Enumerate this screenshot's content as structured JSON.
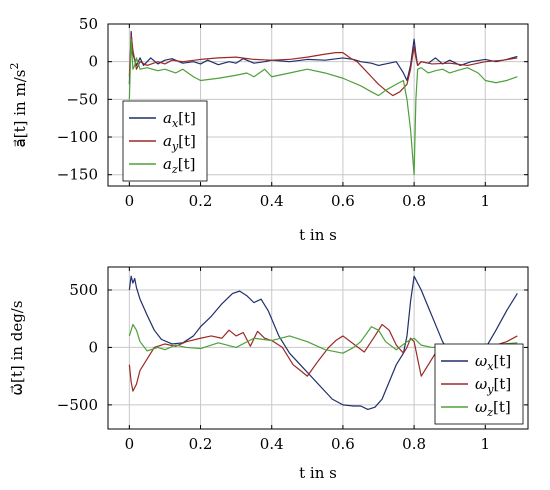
{
  "chart_data": [
    {
      "type": "line",
      "id": "acc",
      "ylabel_main": "a⃗[t] in m/s",
      "ylabel_sup": "2",
      "xlabel": "t in s",
      "xlim": [
        -0.06,
        1.12
      ],
      "ylim": [
        -165,
        50
      ],
      "xticks": [
        0,
        0.2,
        0.4,
        0.6,
        0.8,
        1
      ],
      "xtick_labels": [
        "0",
        "0.2",
        "0.4",
        "0.6",
        "0.8",
        "1"
      ],
      "yticks": [
        -150,
        -100,
        -50,
        0,
        50
      ],
      "ytick_labels": [
        "−150",
        "−100",
        "−50",
        "0",
        "50"
      ],
      "grid": true,
      "legend_position": "lower-left",
      "series": [
        {
          "name": "a",
          "subscript": "x",
          "suffix": "[t]",
          "color": "#1f2f6b",
          "x": [
            0,
            0.005,
            0.01,
            0.02,
            0.03,
            0.04,
            0.05,
            0.06,
            0.08,
            0.1,
            0.12,
            0.15,
            0.18,
            0.2,
            0.22,
            0.25,
            0.28,
            0.3,
            0.32,
            0.35,
            0.38,
            0.4,
            0.45,
            0.5,
            0.55,
            0.6,
            0.63,
            0.65,
            0.68,
            0.7,
            0.72,
            0.75,
            0.77,
            0.78,
            0.79,
            0.8,
            0.805,
            0.81,
            0.82,
            0.84,
            0.86,
            0.88,
            0.9,
            0.93,
            0.96,
            1.0,
            1.03,
            1.06,
            1.09
          ],
          "y": [
            -30,
            40,
            10,
            -5,
            5,
            -5,
            0,
            5,
            -3,
            2,
            4,
            -2,
            0,
            -3,
            2,
            -4,
            0,
            -2,
            4,
            -2,
            0,
            2,
            0,
            3,
            2,
            5,
            3,
            0,
            -2,
            -5,
            -3,
            0,
            -15,
            -25,
            -5,
            30,
            10,
            -5,
            0,
            -2,
            5,
            -3,
            2,
            -5,
            0,
            3,
            0,
            3,
            7
          ]
        },
        {
          "name": "a",
          "subscript": "y",
          "suffix": "[t]",
          "color": "#9b2a26",
          "x": [
            0,
            0.005,
            0.01,
            0.02,
            0.03,
            0.05,
            0.08,
            0.1,
            0.12,
            0.15,
            0.2,
            0.25,
            0.3,
            0.35,
            0.4,
            0.45,
            0.5,
            0.55,
            0.58,
            0.6,
            0.62,
            0.64,
            0.66,
            0.68,
            0.7,
            0.72,
            0.74,
            0.76,
            0.78,
            0.79,
            0.8,
            0.805,
            0.81,
            0.82,
            0.85,
            0.9,
            0.95,
            1.0,
            1.05,
            1.09
          ],
          "y": [
            -20,
            35,
            15,
            -10,
            0,
            -5,
            0,
            -3,
            2,
            0,
            3,
            5,
            6,
            3,
            2,
            3,
            6,
            10,
            12,
            12,
            5,
            0,
            -10,
            -20,
            -30,
            -38,
            -45,
            -40,
            -30,
            -10,
            20,
            5,
            -5,
            0,
            -3,
            -2,
            -5,
            0,
            2,
            5
          ]
        },
        {
          "name": "a",
          "subscript": "z",
          "suffix": "[t]",
          "color": "#4ea03a",
          "x": [
            0,
            0.005,
            0.01,
            0.015,
            0.02,
            0.03,
            0.05,
            0.08,
            0.1,
            0.13,
            0.15,
            0.18,
            0.2,
            0.25,
            0.3,
            0.33,
            0.35,
            0.38,
            0.4,
            0.45,
            0.5,
            0.55,
            0.6,
            0.65,
            0.68,
            0.7,
            0.72,
            0.75,
            0.77,
            0.78,
            0.79,
            0.8,
            0.805,
            0.81,
            0.82,
            0.84,
            0.86,
            0.88,
            0.9,
            0.92,
            0.95,
            0.98,
            1.0,
            1.03,
            1.06,
            1.09
          ],
          "y": [
            -50,
            30,
            -10,
            -5,
            5,
            -10,
            -8,
            -12,
            -10,
            -15,
            -10,
            -20,
            -25,
            -22,
            -18,
            -15,
            -20,
            -10,
            -20,
            -15,
            -10,
            -15,
            -22,
            -32,
            -40,
            -45,
            -38,
            -30,
            -25,
            -50,
            -90,
            -150,
            -50,
            -10,
            -8,
            -15,
            -12,
            -10,
            -15,
            -12,
            -8,
            -15,
            -25,
            -28,
            -25,
            -20
          ]
        }
      ]
    },
    {
      "type": "line",
      "id": "gyro",
      "ylabel_main": "ω⃗[t] in deg/s",
      "xlabel": "t in s",
      "xlim": [
        -0.06,
        1.12
      ],
      "ylim": [
        -710,
        700
      ],
      "xticks": [
        0,
        0.2,
        0.4,
        0.6,
        0.8,
        1
      ],
      "xtick_labels": [
        "0",
        "0.2",
        "0.4",
        "0.6",
        "0.8",
        "1"
      ],
      "yticks": [
        -500,
        0,
        500
      ],
      "ytick_labels": [
        "−500",
        "0",
        "500"
      ],
      "grid": true,
      "legend_position": "lower-right",
      "series": [
        {
          "name": "ω",
          "subscript": "x",
          "suffix": "[t]",
          "color": "#1f2f6b",
          "x": [
            0,
            0.005,
            0.01,
            0.015,
            0.02,
            0.03,
            0.05,
            0.07,
            0.09,
            0.12,
            0.15,
            0.18,
            0.2,
            0.23,
            0.26,
            0.29,
            0.31,
            0.33,
            0.35,
            0.37,
            0.39,
            0.42,
            0.45,
            0.48,
            0.51,
            0.54,
            0.57,
            0.6,
            0.63,
            0.65,
            0.67,
            0.69,
            0.71,
            0.73,
            0.75,
            0.77,
            0.78,
            0.79,
            0.8,
            0.81,
            0.82,
            0.84,
            0.86,
            0.88,
            0.9,
            0.92,
            0.94,
            0.96,
            0.98,
            1.0,
            1.03,
            1.06,
            1.09
          ],
          "y": [
            500,
            620,
            560,
            600,
            520,
            420,
            280,
            150,
            70,
            30,
            40,
            100,
            180,
            270,
            380,
            470,
            490,
            450,
            390,
            420,
            320,
            100,
            -50,
            -150,
            -250,
            -350,
            -450,
            -500,
            -510,
            -510,
            -540,
            -520,
            -450,
            -300,
            -150,
            -50,
            100,
            400,
            620,
            560,
            500,
            350,
            200,
            50,
            -50,
            -100,
            -130,
            -120,
            -80,
            -10,
            150,
            320,
            470
          ]
        },
        {
          "name": "ω",
          "subscript": "y",
          "suffix": "[t]",
          "color": "#9b2a26",
          "x": [
            0,
            0.005,
            0.01,
            0.02,
            0.03,
            0.05,
            0.07,
            0.1,
            0.13,
            0.16,
            0.2,
            0.23,
            0.26,
            0.28,
            0.3,
            0.32,
            0.34,
            0.36,
            0.38,
            0.4,
            0.43,
            0.46,
            0.48,
            0.5,
            0.53,
            0.56,
            0.58,
            0.6,
            0.63,
            0.66,
            0.69,
            0.71,
            0.73,
            0.75,
            0.77,
            0.78,
            0.79,
            0.8,
            0.81,
            0.82,
            0.84,
            0.86,
            0.88,
            0.9,
            0.93,
            0.96,
            1.0,
            1.03,
            1.06,
            1.09
          ],
          "y": [
            -150,
            -300,
            -380,
            -320,
            -200,
            -100,
            0,
            30,
            10,
            50,
            80,
            100,
            80,
            150,
            100,
            130,
            10,
            140,
            80,
            60,
            0,
            -150,
            -200,
            -250,
            -120,
            0,
            60,
            100,
            30,
            -40,
            100,
            200,
            150,
            20,
            -50,
            0,
            80,
            50,
            -100,
            -250,
            -150,
            -50,
            0,
            -30,
            -50,
            -20,
            -30,
            20,
            50,
            100
          ]
        },
        {
          "name": "ω",
          "subscript": "z",
          "suffix": "[t]",
          "color": "#4ea03a",
          "x": [
            0,
            0.01,
            0.02,
            0.03,
            0.05,
            0.08,
            0.1,
            0.13,
            0.16,
            0.2,
            0.25,
            0.3,
            0.35,
            0.4,
            0.45,
            0.5,
            0.55,
            0.6,
            0.63,
            0.65,
            0.68,
            0.7,
            0.72,
            0.75,
            0.78,
            0.8,
            0.82,
            0.85,
            0.9,
            0.95,
            1.0,
            1.05,
            1.09
          ],
          "y": [
            100,
            200,
            150,
            50,
            -30,
            0,
            -20,
            20,
            0,
            -10,
            40,
            0,
            80,
            60,
            100,
            50,
            -20,
            -50,
            0,
            50,
            180,
            150,
            50,
            -20,
            50,
            80,
            20,
            0,
            10,
            20,
            0,
            30,
            40
          ]
        }
      ]
    }
  ]
}
